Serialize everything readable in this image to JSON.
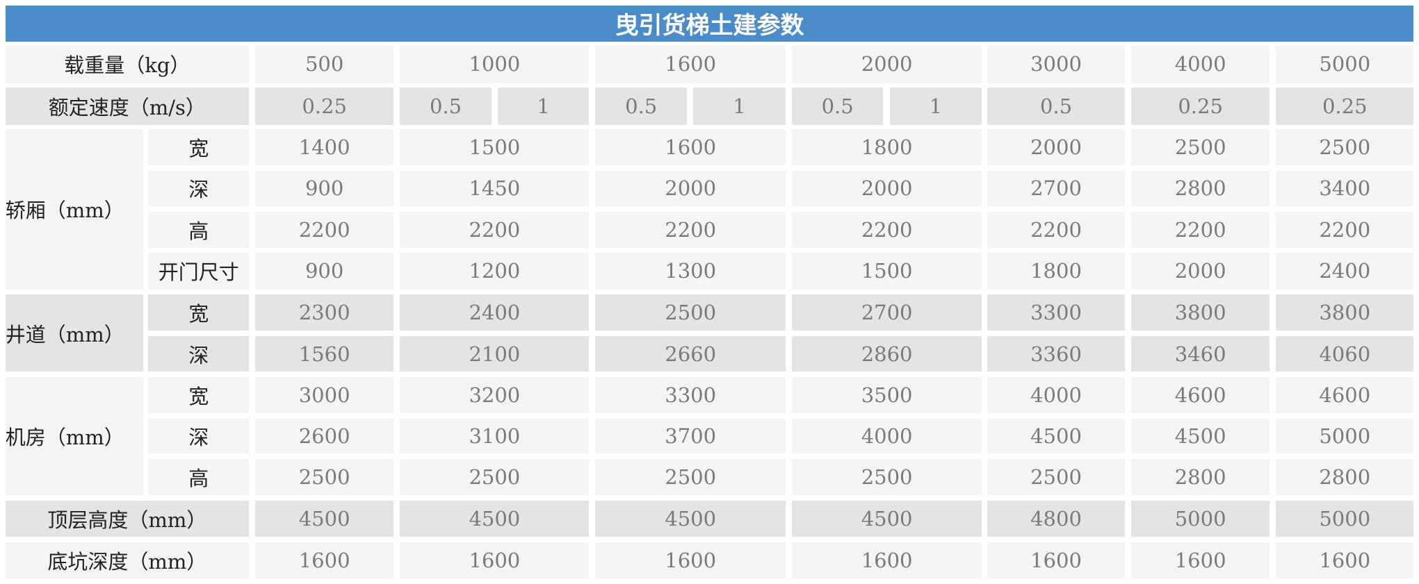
{
  "header": {
    "title": "曳引货梯土建参数"
  },
  "table": {
    "rows": [
      {
        "label": "载重量（kg）",
        "values": [
          500,
          1000,
          1600,
          2000,
          3000,
          4000,
          5000
        ]
      },
      {
        "label": "额定速度（m/s）",
        "values": [
          0.25,
          0.5,
          1,
          0.5,
          1,
          0.5,
          1,
          0.5,
          0.25,
          0.25
        ]
      },
      {
        "label": "轿厢（mm）",
        "sub": [
          {
            "label": "宽",
            "values": [
              1400,
              1500,
              1600,
              1800,
              2000,
              2500,
              2500
            ]
          },
          {
            "label": "深",
            "values": [
              900,
              1450,
              2000,
              2000,
              2700,
              2800,
              3400
            ]
          },
          {
            "label": "高",
            "values": [
              2200,
              2200,
              2200,
              2200,
              2200,
              2200,
              2200
            ]
          },
          {
            "label": "开门尺寸",
            "values": [
              900,
              1200,
              1300,
              1500,
              1800,
              2000,
              2400
            ]
          }
        ]
      },
      {
        "label": "井道（mm）",
        "sub": [
          {
            "label": "宽",
            "values": [
              2300,
              2400,
              2500,
              2700,
              3300,
              3800,
              3800
            ]
          },
          {
            "label": "深",
            "values": [
              1560,
              2100,
              2660,
              2860,
              3360,
              3460,
              4060
            ]
          }
        ]
      },
      {
        "label": "机房（mm）",
        "sub": [
          {
            "label": "宽",
            "values": [
              3000,
              3200,
              3300,
              3500,
              4000,
              4600,
              4600
            ]
          },
          {
            "label": "深",
            "values": [
              2600,
              3100,
              3700,
              4000,
              4500,
              4500,
              5000
            ]
          },
          {
            "label": "高",
            "values": [
              2500,
              2500,
              2500,
              2500,
              2500,
              2800,
              2800
            ]
          }
        ]
      },
      {
        "label": "顶层高度（mm）",
        "values": [
          4500,
          4500,
          4500,
          4500,
          4800,
          5000,
          5000
        ]
      },
      {
        "label": "底坑深度（mm）",
        "values": [
          1600,
          1600,
          1600,
          1600,
          1600,
          1600,
          1600
        ]
      }
    ]
  }
}
